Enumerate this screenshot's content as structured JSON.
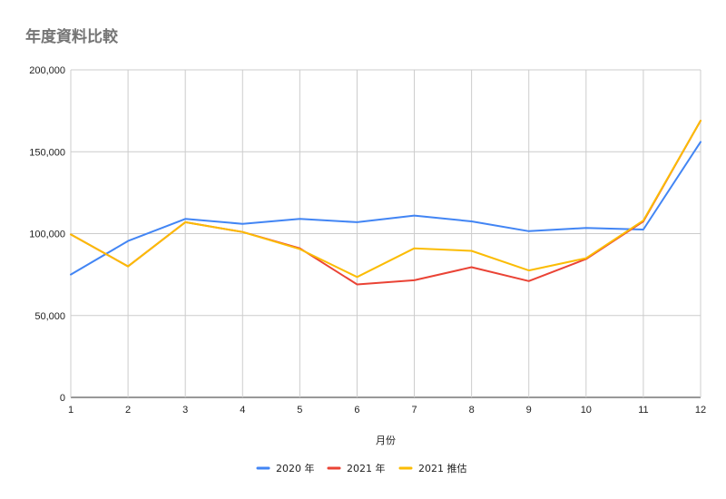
{
  "chart_data": {
    "type": "line",
    "title": "年度資料比較",
    "xlabel": "月份",
    "ylabel": "",
    "x": [
      1,
      2,
      3,
      4,
      5,
      6,
      7,
      8,
      9,
      10,
      11,
      12
    ],
    "ylim": [
      0,
      200000
    ],
    "yticks": [
      0,
      50000,
      100000,
      150000,
      200000
    ],
    "ytick_labels": [
      "0",
      "50,000",
      "100,000",
      "150,000",
      "200,000"
    ],
    "grid": true,
    "legend_position": "bottom",
    "series": [
      {
        "name": "2020 年",
        "color": "#4285f4",
        "values": [
          75000,
          95500,
          109000,
          106000,
          109000,
          107000,
          111000,
          107500,
          101500,
          103500,
          102500,
          156000
        ]
      },
      {
        "name": "2021 年",
        "color": "#ea4335",
        "values": [
          99500,
          80000,
          107000,
          101000,
          91000,
          69000,
          71500,
          79500,
          71000,
          84500,
          107500,
          169000
        ]
      },
      {
        "name": "2021 推估",
        "color": "#fbbc04",
        "values": [
          99500,
          80000,
          107000,
          101000,
          90500,
          73500,
          91000,
          89500,
          77500,
          85000,
          108000,
          169000
        ]
      }
    ]
  }
}
